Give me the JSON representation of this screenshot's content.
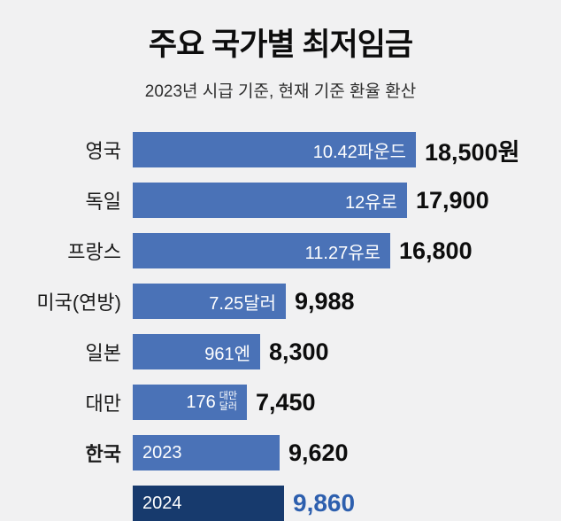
{
  "title": "주요 국가별 최저임금",
  "subtitle": "2023년 시급 기준, 현재 기준 환율 환산",
  "colors": {
    "background": "#f1f1f2",
    "bar": "#4a72b7",
    "bar_dark": "#173a6d",
    "value_highlight": "#2d5fae"
  },
  "rows": [
    {
      "key": "uk",
      "label": "영국",
      "inner": "10.42파운드",
      "value": "18,500원",
      "value_num": 18500,
      "bold_label": false,
      "dark": false,
      "inner_align": "right",
      "value_highlight": false
    },
    {
      "key": "germany",
      "label": "독일",
      "inner": "12유로",
      "value": "17,900",
      "value_num": 17900,
      "bold_label": false,
      "dark": false,
      "inner_align": "right",
      "value_highlight": false
    },
    {
      "key": "france",
      "label": "프랑스",
      "inner": "11.27유로",
      "value": "16,800",
      "value_num": 16800,
      "bold_label": false,
      "dark": false,
      "inner_align": "right",
      "value_highlight": false
    },
    {
      "key": "us-federal",
      "label": "미국(연방)",
      "inner": "7.25달러",
      "value": "9,988",
      "value_num": 9988,
      "bold_label": false,
      "dark": false,
      "inner_align": "right",
      "value_highlight": false
    },
    {
      "key": "japan",
      "label": "일본",
      "inner": "961엔",
      "value": "8,300",
      "value_num": 8300,
      "bold_label": false,
      "dark": false,
      "inner_align": "right",
      "value_highlight": false
    },
    {
      "key": "taiwan",
      "label": "대만",
      "inner": "176",
      "inner_small": "대만\n달러",
      "value": "7,450",
      "value_num": 7450,
      "bold_label": false,
      "dark": false,
      "inner_align": "right",
      "value_highlight": false
    },
    {
      "key": "korea-2023",
      "label": "한국",
      "inner": "2023",
      "value": "9,620",
      "value_num": 9620,
      "bold_label": true,
      "dark": false,
      "inner_align": "left",
      "value_highlight": false
    },
    {
      "key": "korea-2024",
      "label": "",
      "inner": "2024",
      "value": "9,860",
      "value_num": 9860,
      "bold_label": false,
      "dark": true,
      "inner_align": "left",
      "value_highlight": true
    }
  ],
  "chart_data": {
    "type": "bar",
    "orientation": "horizontal",
    "title": "주요 국가별 최저임금",
    "subtitle": "2023년 시급 기준, 현재 기준 환율 환산",
    "categories": [
      "영국",
      "독일",
      "프랑스",
      "미국(연방)",
      "일본",
      "대만",
      "한국 2023",
      "한국 2024"
    ],
    "values": [
      18500,
      17900,
      16800,
      9988,
      8300,
      7450,
      9620,
      9860
    ],
    "bar_inner_labels": [
      "10.42파운드",
      "12유로",
      "11.27유로",
      "7.25달러",
      "961엔",
      "176 대만달러",
      "2023",
      "2024"
    ],
    "unit": "원",
    "xlim": [
      0,
      18500
    ],
    "grid": "off",
    "legend": "off",
    "highlight_category": "한국 2024"
  }
}
